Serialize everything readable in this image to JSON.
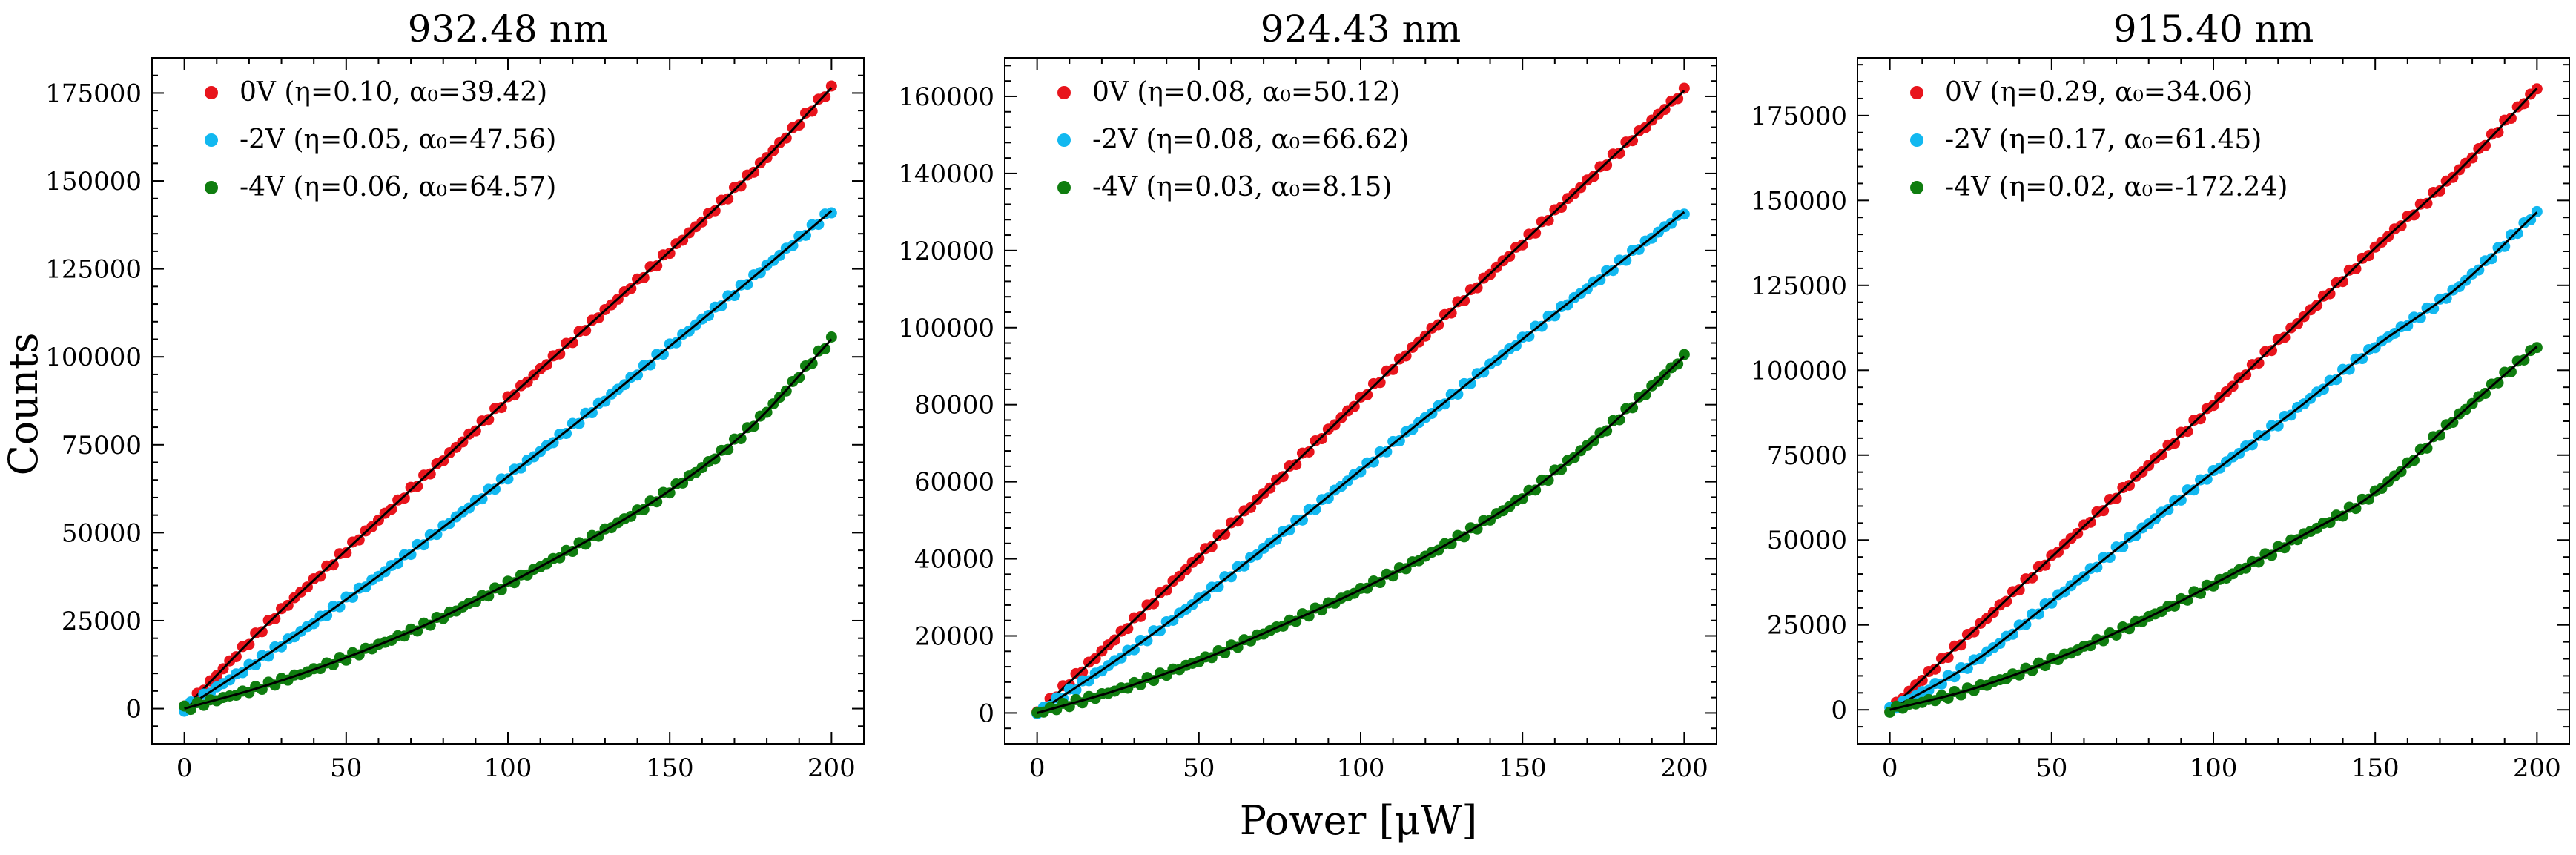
{
  "figure": {
    "ylabel": "Counts",
    "xlabel": "Power [μW]"
  },
  "chart_data": [
    {
      "type": "scatter",
      "title": "932.48 nm",
      "xlabel": "Power [μW]",
      "ylabel": "Counts",
      "xlim": [
        -10,
        210
      ],
      "ylim": [
        -10000,
        185000
      ],
      "xticks": [
        0,
        50,
        100,
        150,
        200
      ],
      "yticks": [
        0,
        25000,
        50000,
        75000,
        100000,
        125000,
        150000,
        175000
      ],
      "grid": false,
      "legend_position": "top-left",
      "series": [
        {
          "name": "0V (η=0.10, α₀=39.42)",
          "color": "#e8141c",
          "fit_color": "#000000",
          "x": [
            0,
            25,
            50,
            75,
            100,
            125,
            150,
            175,
            200
          ],
          "y": [
            0,
            23500,
            45000,
            66500,
            88000,
            109000,
            130000,
            152000,
            176500
          ]
        },
        {
          "name": "-2V (η=0.05, α₀=47.56)",
          "color": "#12b8f0",
          "fit_color": "#000000",
          "x": [
            0,
            25,
            50,
            75,
            100,
            125,
            150,
            175,
            200
          ],
          "y": [
            0,
            15000,
            31000,
            48000,
            66000,
            84000,
            103000,
            122000,
            141500
          ]
        },
        {
          "name": "-4V (η=0.06, α₀=64.57)",
          "color": "#0f7d0f",
          "fit_color": "#000000",
          "x": [
            0,
            25,
            50,
            75,
            100,
            125,
            150,
            175,
            200
          ],
          "y": [
            0,
            6500,
            14500,
            24000,
            35500,
            48000,
            62000,
            80000,
            105000
          ]
        }
      ]
    },
    {
      "type": "scatter",
      "title": "924.43 nm",
      "xlabel": "Power [μW]",
      "ylabel": "",
      "xlim": [
        -10,
        210
      ],
      "ylim": [
        -8000,
        170000
      ],
      "xticks": [
        0,
        50,
        100,
        150,
        200
      ],
      "yticks": [
        0,
        20000,
        40000,
        60000,
        80000,
        100000,
        120000,
        140000,
        160000
      ],
      "grid": false,
      "legend_position": "top-left",
      "series": [
        {
          "name": "0V (η=0.08, α₀=50.12)",
          "color": "#e8141c",
          "fit_color": "#000000",
          "x": [
            0,
            25,
            50,
            75,
            100,
            125,
            150,
            175,
            200
          ],
          "y": [
            0,
            20000,
            40500,
            61000,
            81500,
            102000,
            122000,
            142000,
            161500
          ]
        },
        {
          "name": "-2V (η=0.08, α₀=66.62)",
          "color": "#12b8f0",
          "fit_color": "#000000",
          "x": [
            0,
            25,
            50,
            75,
            100,
            125,
            150,
            175,
            200
          ],
          "y": [
            0,
            14000,
            29500,
            46000,
            63000,
            80000,
            97000,
            113500,
            130000
          ]
        },
        {
          "name": "-4V (η=0.03, α₀=8.15)",
          "color": "#0f7d0f",
          "fit_color": "#000000",
          "x": [
            0,
            25,
            50,
            75,
            100,
            125,
            150,
            175,
            200
          ],
          "y": [
            0,
            6000,
            13500,
            22500,
            32000,
            43000,
            56000,
            73000,
            92500
          ]
        }
      ]
    },
    {
      "type": "scatter",
      "title": "915.40 nm",
      "xlabel": "Power [μW]",
      "ylabel": "",
      "xlim": [
        -10,
        210
      ],
      "ylim": [
        -10000,
        192000
      ],
      "xticks": [
        0,
        50,
        100,
        150,
        200
      ],
      "yticks": [
        0,
        25000,
        50000,
        75000,
        100000,
        125000,
        150000,
        175000
      ],
      "grid": false,
      "legend_position": "top-left",
      "series": [
        {
          "name": "0V (η=0.29, α₀=34.06)",
          "color": "#e8141c",
          "fit_color": "#000000",
          "x": [
            0,
            25,
            50,
            75,
            100,
            125,
            150,
            175,
            200
          ],
          "y": [
            0,
            22500,
            45000,
            67500,
            90000,
            113000,
            136000,
            158000,
            183000
          ]
        },
        {
          "name": "-2V (η=0.17, α₀=61.45)",
          "color": "#12b8f0",
          "fit_color": "#000000",
          "x": [
            0,
            25,
            50,
            75,
            100,
            125,
            150,
            175,
            200
          ],
          "y": [
            0,
            13500,
            32000,
            51000,
            70000,
            88000,
            107000,
            124000,
            146500
          ]
        },
        {
          "name": "-4V (η=0.02, α₀=-172.24)",
          "color": "#0f7d0f",
          "fit_color": "#000000",
          "x": [
            0,
            25,
            50,
            75,
            100,
            125,
            150,
            175,
            200
          ],
          "y": [
            0,
            6000,
            14500,
            25000,
            37000,
            50000,
            64000,
            86000,
            107000
          ]
        }
      ]
    }
  ]
}
